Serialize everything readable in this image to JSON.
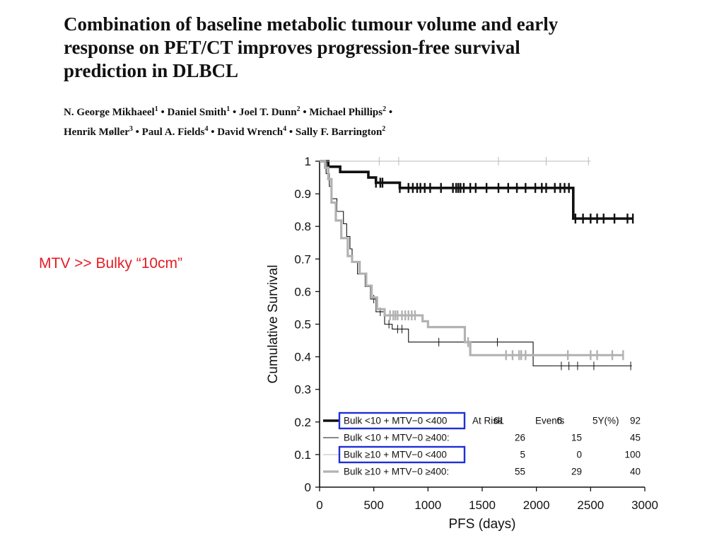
{
  "paper": {
    "title_lines": [
      "Combination of baseline metabolic tumour volume and early",
      "response on PET/CT improves progression-free survival",
      "prediction in DLBCL"
    ],
    "authors_line1": [
      {
        "name": "N. George Mikhaeel",
        "sup": "1"
      },
      {
        "name": "Daniel Smith",
        "sup": "1"
      },
      {
        "name": "Joel T. Dunn",
        "sup": "2"
      },
      {
        "name": "Michael Phillips",
        "sup": "2"
      }
    ],
    "authors_line2": [
      {
        "name": "Henrik Møller",
        "sup": "3"
      },
      {
        "name": "Paul A. Fields",
        "sup": "4"
      },
      {
        "name": "David Wrench",
        "sup": "4"
      },
      {
        "name": "Sally F. Barrington",
        "sup": "2"
      }
    ],
    "separator": "•"
  },
  "annotation": "MTV >> Bulky “10cm”",
  "chart_data": {
    "type": "line",
    "xlabel": "PFS (days)",
    "ylabel": "Cumulative Survival",
    "xlim": [
      0,
      3000
    ],
    "ylim": [
      0,
      1
    ],
    "x_ticks": [
      0,
      500,
      1000,
      1500,
      2000,
      2500,
      3000
    ],
    "y_ticks": [
      0,
      0.1,
      0.2,
      0.3,
      0.4,
      0.5,
      0.6,
      0.7,
      0.8,
      0.9,
      1
    ],
    "y_tick_labels": [
      "0",
      "0.1",
      "0.2",
      "0.3",
      "0.4",
      "0.5",
      "0.6",
      "0.7",
      "0.8",
      "0.9",
      "1"
    ],
    "grid": false,
    "legend_headers": {
      "at_risk": "At Risk",
      "events": "Events",
      "five_year": "5Y(%)"
    },
    "series": [
      {
        "name": "Bulk <10 + MTV−0 <400",
        "at_risk": "61",
        "events": "6",
        "five_year": "92",
        "color": "#111111",
        "highlighted": true,
        "steps": [
          [
            0,
            1
          ],
          [
            80,
            0.983
          ],
          [
            190,
            0.967
          ],
          [
            450,
            0.95
          ],
          [
            520,
            0.934
          ],
          [
            740,
            0.918
          ],
          [
            2330,
            0.918
          ],
          [
            2340,
            0.824
          ],
          [
            2890,
            0.824
          ]
        ],
        "censored": [
          520,
          560,
          580,
          740,
          820,
          860,
          900,
          930,
          970,
          1020,
          1120,
          1230,
          1260,
          1280,
          1300,
          1330,
          1390,
          1440,
          1540,
          1650,
          1740,
          1820,
          1900,
          1990,
          2050,
          2090,
          2170,
          2220,
          2260,
          2300,
          2360,
          2430,
          2500,
          2560,
          2620,
          2720,
          2840,
          2890
        ]
      },
      {
        "name": "Bulk <10 + MTV−0 ≥400:",
        "at_risk": "26",
        "events": "15",
        "five_year": "45",
        "color": "#111111",
        "highlighted": false,
        "steps": [
          [
            0,
            1
          ],
          [
            60,
            0.962
          ],
          [
            90,
            0.923
          ],
          [
            110,
            0.885
          ],
          [
            160,
            0.846
          ],
          [
            220,
            0.808
          ],
          [
            250,
            0.769
          ],
          [
            280,
            0.731
          ],
          [
            300,
            0.692
          ],
          [
            350,
            0.654
          ],
          [
            420,
            0.615
          ],
          [
            470,
            0.577
          ],
          [
            520,
            0.538
          ],
          [
            600,
            0.5
          ],
          [
            670,
            0.485
          ],
          [
            820,
            0.445
          ],
          [
            1960,
            0.445
          ],
          [
            1970,
            0.372
          ],
          [
            2880,
            0.372
          ]
        ],
        "censored": [
          500,
          560,
          640,
          720,
          760,
          1100,
          1640,
          2230,
          2300,
          2380,
          2530,
          2870
        ]
      },
      {
        "name": "Bulk ≥10 + MTV−0 <400",
        "at_risk": "5",
        "events": "0",
        "five_year": "100",
        "color": "#bbbbbb",
        "highlighted": true,
        "steps": [
          [
            0,
            1
          ],
          [
            2500,
            1
          ]
        ],
        "censored": [
          550,
          730,
          1650,
          2090,
          2480
        ]
      },
      {
        "name": "Bulk ≥10 + MTV−0 ≥400:",
        "at_risk": "55",
        "events": "29",
        "five_year": "40",
        "color": "#b2b2b2",
        "highlighted": false,
        "steps": [
          [
            0,
            1
          ],
          [
            50,
            0.98
          ],
          [
            80,
            0.945
          ],
          [
            110,
            0.873
          ],
          [
            150,
            0.818
          ],
          [
            200,
            0.764
          ],
          [
            260,
            0.709
          ],
          [
            300,
            0.691
          ],
          [
            370,
            0.655
          ],
          [
            430,
            0.618
          ],
          [
            480,
            0.582
          ],
          [
            530,
            0.546
          ],
          [
            600,
            0.527
          ],
          [
            950,
            0.509
          ],
          [
            1000,
            0.491
          ],
          [
            1330,
            0.491
          ],
          [
            1340,
            0.445
          ],
          [
            1390,
            0.405
          ],
          [
            2800,
            0.405
          ]
        ],
        "censored": [
          650,
          680,
          700,
          720,
          760,
          790,
          820,
          850,
          880,
          1370,
          1720,
          1780,
          1840,
          1860,
          1900,
          2290,
          2500,
          2560,
          2700,
          2800
        ]
      }
    ]
  }
}
